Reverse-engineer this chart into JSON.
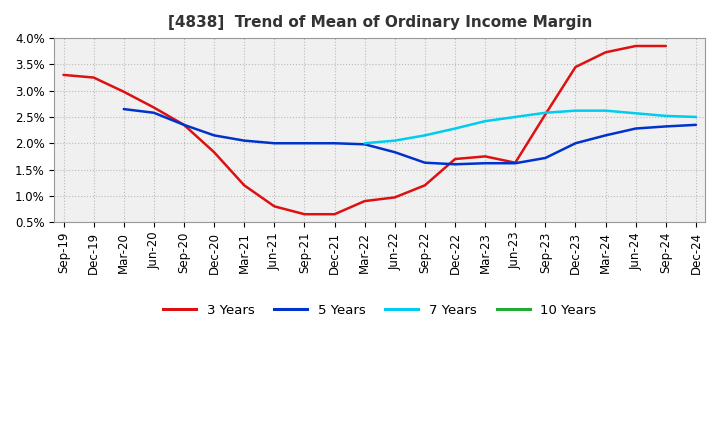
{
  "title": "[4838]  Trend of Mean of Ordinary Income Margin",
  "x_labels": [
    "Sep-19",
    "Dec-19",
    "Mar-20",
    "Jun-20",
    "Sep-20",
    "Dec-20",
    "Mar-21",
    "Jun-21",
    "Sep-21",
    "Dec-21",
    "Mar-22",
    "Jun-22",
    "Sep-22",
    "Dec-22",
    "Mar-23",
    "Jun-23",
    "Sep-23",
    "Dec-23",
    "Mar-24",
    "Jun-24",
    "Sep-24",
    "Dec-24"
  ],
  "ylim": [
    0.005,
    0.04
  ],
  "yticks": [
    0.005,
    0.01,
    0.015,
    0.02,
    0.025,
    0.03,
    0.035,
    0.04
  ],
  "ytick_labels": [
    "0.5%",
    "1.0%",
    "1.5%",
    "2.0%",
    "2.5%",
    "3.0%",
    "3.5%",
    "4.0%"
  ],
  "series": {
    "3 Years": {
      "color": "#dd1111",
      "linewidth": 1.8,
      "data_x": [
        0,
        1,
        2,
        3,
        4,
        5,
        6,
        7,
        8,
        9,
        10,
        11,
        12,
        13,
        14,
        15,
        16,
        17,
        18,
        19,
        20
      ],
      "data_y": [
        0.033,
        0.0325,
        0.0298,
        0.0268,
        0.0235,
        0.0183,
        0.012,
        0.008,
        0.0065,
        0.0065,
        0.009,
        0.0097,
        0.012,
        0.017,
        0.0175,
        0.0163,
        0.0255,
        0.0345,
        0.0373,
        0.0385,
        0.0385
      ]
    },
    "5 Years": {
      "color": "#0033cc",
      "linewidth": 1.8,
      "data_x": [
        2,
        3,
        4,
        5,
        6,
        7,
        8,
        9,
        10,
        11,
        12,
        13,
        14,
        15,
        16,
        17,
        18,
        19,
        20,
        21
      ],
      "data_y": [
        0.0265,
        0.0258,
        0.0235,
        0.0215,
        0.0205,
        0.02,
        0.02,
        0.02,
        0.0198,
        0.0183,
        0.0163,
        0.016,
        0.0162,
        0.0162,
        0.0172,
        0.02,
        0.0215,
        0.0228,
        0.0232,
        0.0235
      ]
    },
    "7 Years": {
      "color": "#00ccee",
      "linewidth": 1.8,
      "data_x": [
        10,
        11,
        12,
        13,
        14,
        15,
        16,
        17,
        18,
        19,
        20,
        21
      ],
      "data_y": [
        0.02,
        0.0205,
        0.0215,
        0.0228,
        0.0242,
        0.025,
        0.0258,
        0.0262,
        0.0262,
        0.0257,
        0.0252,
        0.025
      ]
    },
    "10 Years": {
      "color": "#22aa33",
      "linewidth": 1.8,
      "data_x": [],
      "data_y": []
    }
  },
  "legend_entries": [
    "3 Years",
    "5 Years",
    "7 Years",
    "10 Years"
  ],
  "legend_colors": [
    "#dd1111",
    "#0033cc",
    "#00ccee",
    "#22aa33"
  ],
  "background_color": "#ffffff",
  "plot_bg_color": "#f0f0f0",
  "grid_color": "#bbbbbb",
  "title_fontsize": 11,
  "axis_fontsize": 8.5
}
